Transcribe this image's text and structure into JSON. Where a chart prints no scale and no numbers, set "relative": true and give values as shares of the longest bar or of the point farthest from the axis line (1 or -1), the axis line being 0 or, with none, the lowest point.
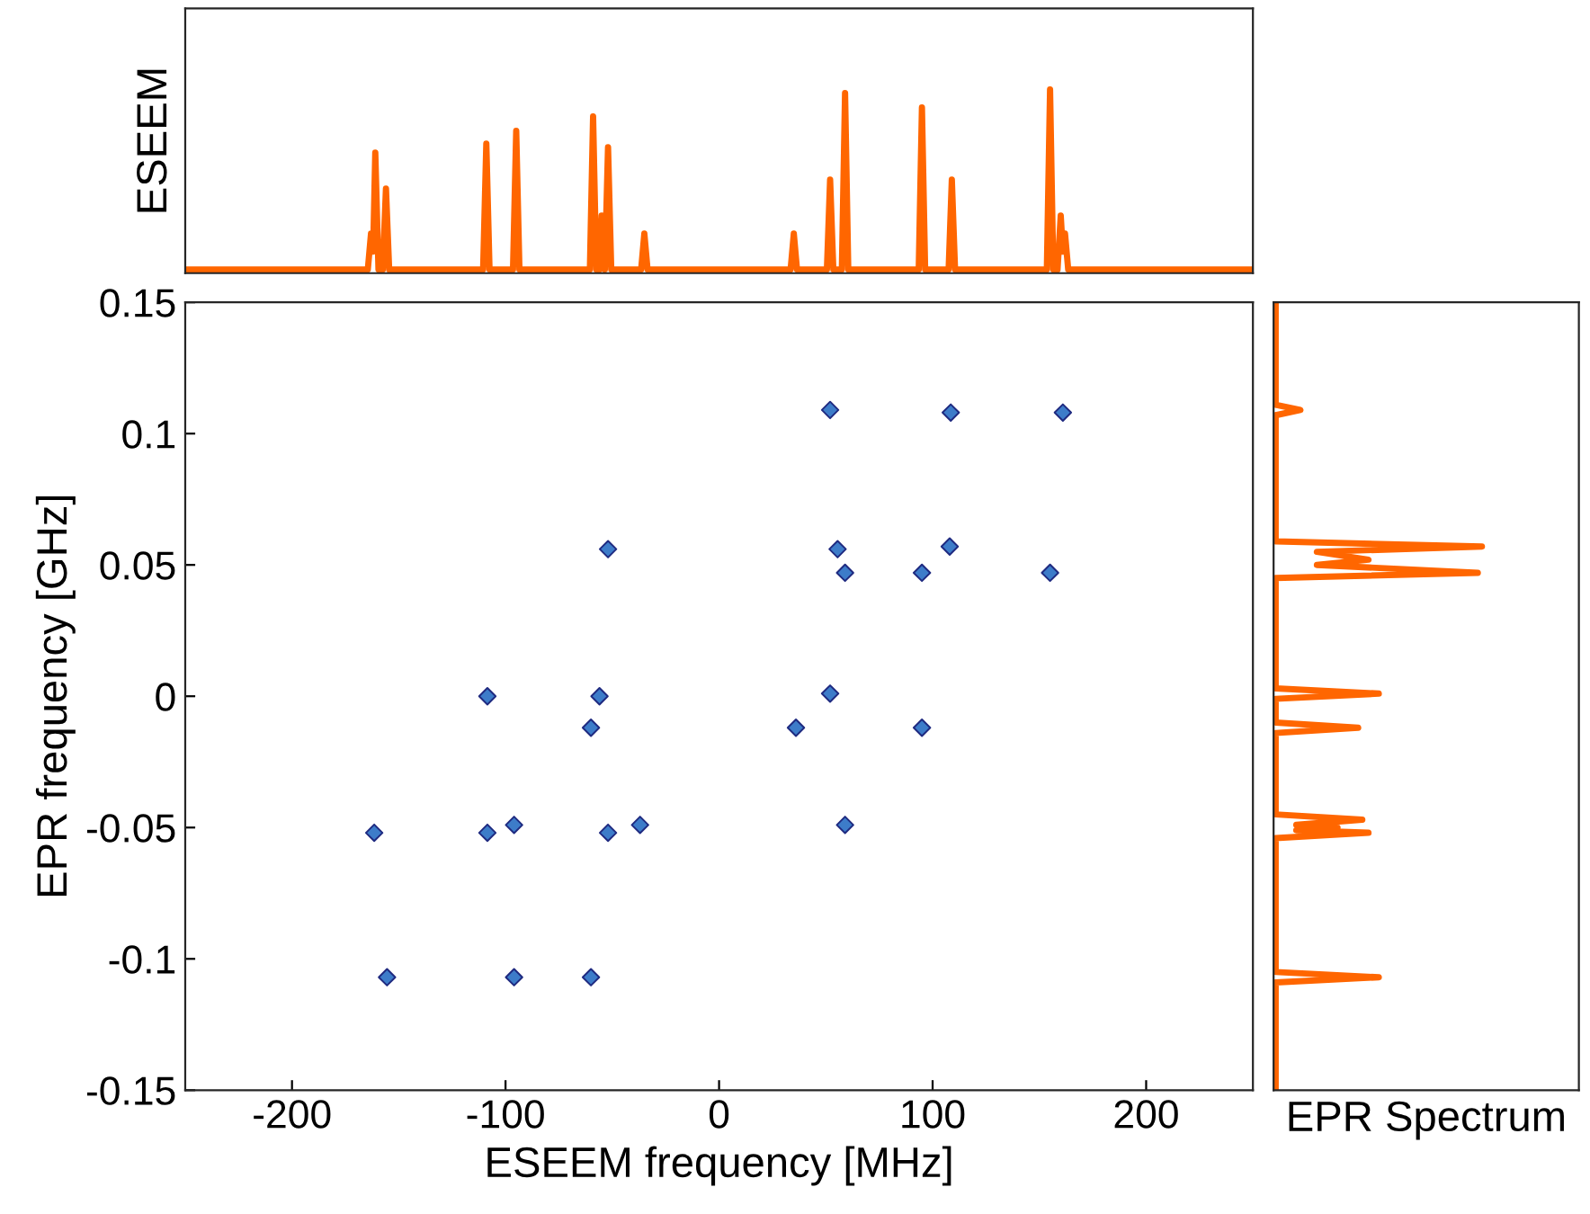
{
  "chart_data": [
    {
      "type": "line",
      "ylabel": "ESEEM",
      "relative": true,
      "xlim": [
        -250,
        250
      ],
      "grid": false,
      "x": [
        -250,
        -164.5,
        -163,
        -162,
        -161,
        -159.5,
        -157.5,
        -156,
        -154.5,
        -110.5,
        -109,
        -107.5,
        -96.5,
        -95,
        -93.5,
        -60.5,
        -59,
        -57.5,
        -56,
        -55,
        -53.5,
        -52,
        -50.5,
        -36.5,
        -35,
        -33.5,
        33.5,
        35,
        36.5,
        50.5,
        52,
        53.5,
        57.5,
        59,
        60.5,
        93.5,
        95,
        96.5,
        107.5,
        109,
        110.5,
        153.5,
        155,
        156.5,
        158.5,
        160,
        161,
        162,
        163.5,
        250
      ],
      "series": [
        {
          "color": "#ff6600",
          "values": [
            0,
            0,
            0.2,
            0.1,
            0.65,
            0,
            0,
            0.45,
            0,
            0,
            0.7,
            0,
            0,
            0.77,
            0,
            0,
            0.85,
            0,
            0,
            0.3,
            0,
            0.68,
            0,
            0,
            0.2,
            0,
            0,
            0.2,
            0,
            0,
            0.5,
            0,
            0,
            0.98,
            0,
            0,
            0.9,
            0,
            0,
            0.5,
            0,
            0,
            1.0,
            0,
            0,
            0.3,
            0.1,
            0.2,
            0,
            0
          ]
        }
      ]
    },
    {
      "type": "scatter",
      "xlabel": "ESEEM frequency [MHz]",
      "ylabel": "EPR frequency [GHz]",
      "xlim": [
        -250,
        250
      ],
      "ylim": [
        -0.15,
        0.15
      ],
      "xticks": [
        -200,
        -100,
        0,
        100,
        200
      ],
      "yticks": [
        -0.15,
        -0.1,
        -0.05,
        0,
        0.05,
        0.1,
        0.15
      ],
      "grid": false,
      "marker": "diamond",
      "x": [
        52,
        108.5,
        161,
        -52,
        55.5,
        108,
        59,
        95,
        155,
        -108.5,
        -56,
        52,
        -60,
        36,
        95,
        -161.5,
        -108.5,
        -96,
        -52,
        -37,
        59,
        -155.5,
        -96,
        -60
      ],
      "series": [
        {
          "color": "#3d7cc9",
          "values": [
            0.109,
            0.108,
            0.108,
            0.056,
            0.056,
            0.057,
            0.047,
            0.047,
            0.047,
            0,
            0,
            0.001,
            -0.012,
            -0.012,
            -0.012,
            -0.052,
            -0.052,
            -0.049,
            -0.052,
            -0.049,
            -0.049,
            -0.107,
            -0.107,
            -0.107
          ]
        }
      ]
    },
    {
      "type": "line",
      "orientation": "horizontal",
      "xlabel": "EPR Spectrum",
      "relative": true,
      "ylim": [
        -0.15,
        0.15
      ],
      "grid": false,
      "x": [
        -0.15,
        -0.109,
        -0.107,
        -0.105,
        -0.054,
        -0.052,
        -0.051,
        -0.05,
        -0.049,
        -0.047,
        -0.045,
        -0.014,
        -0.012,
        -0.01,
        -0.001,
        0.001,
        0.003,
        0.045,
        0.047,
        0.05,
        0.052,
        0.055,
        0.057,
        0.059,
        0.107,
        0.109,
        0.111,
        0.15
      ],
      "series": [
        {
          "color": "#ff6600",
          "values": [
            0,
            0,
            0.5,
            0,
            0,
            0.45,
            0.1,
            0.3,
            0.1,
            0.42,
            0,
            0,
            0.4,
            0,
            0,
            0.5,
            0,
            0,
            0.98,
            0.2,
            0.45,
            0.2,
            1.0,
            0,
            0,
            0.12,
            0,
            0
          ]
        }
      ]
    }
  ]
}
